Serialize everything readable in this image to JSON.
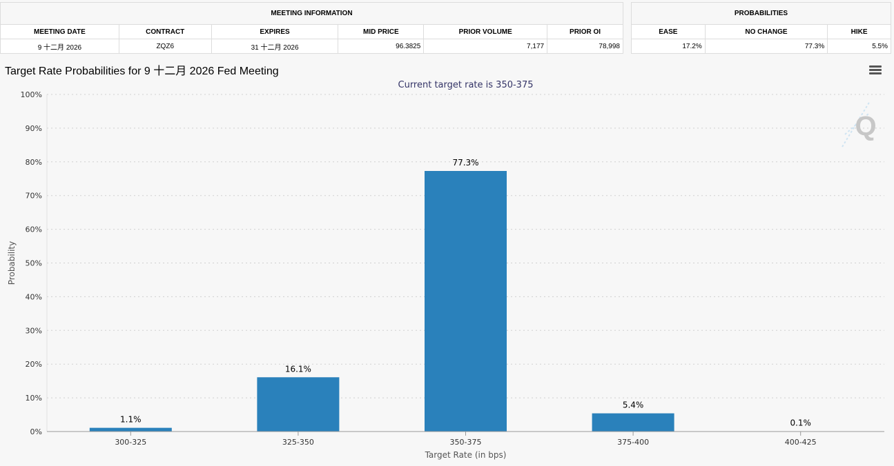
{
  "meeting_info": {
    "group_label": "MEETING INFORMATION",
    "headers": [
      "MEETING DATE",
      "CONTRACT",
      "EXPIRES",
      "MID PRICE",
      "PRIOR VOLUME",
      "PRIOR OI"
    ],
    "values": [
      "9 十二月 2026",
      "ZQZ6",
      "31 十二月 2026",
      "96.3825",
      "7,177",
      "78,998"
    ]
  },
  "probabilities": {
    "group_label": "PROBABILITIES",
    "headers": [
      "EASE",
      "NO CHANGE",
      "HIKE"
    ],
    "values": [
      "17.2%",
      "77.3%",
      "5.5%"
    ]
  },
  "chart_title": "Target Rate Probabilities for 9 十二月 2026 Fed Meeting",
  "watermark_letter": "Q",
  "chart_data": {
    "type": "bar",
    "subtitle": "Current target rate is 350-375",
    "xlabel": "Target Rate (in bps)",
    "ylabel": "Probability",
    "categories": [
      "300-325",
      "325-350",
      "350-375",
      "375-400",
      "400-425"
    ],
    "values": [
      1.1,
      16.1,
      77.3,
      5.4,
      0.1
    ],
    "data_labels": [
      "1.1%",
      "16.1%",
      "77.3%",
      "5.4%",
      "0.1%"
    ],
    "ylim": [
      0,
      100
    ],
    "yticks": [
      "0%",
      "10%",
      "20%",
      "30%",
      "40%",
      "50%",
      "60%",
      "70%",
      "80%",
      "90%",
      "100%"
    ],
    "grid": true,
    "bar_color": "#2a81bb"
  }
}
